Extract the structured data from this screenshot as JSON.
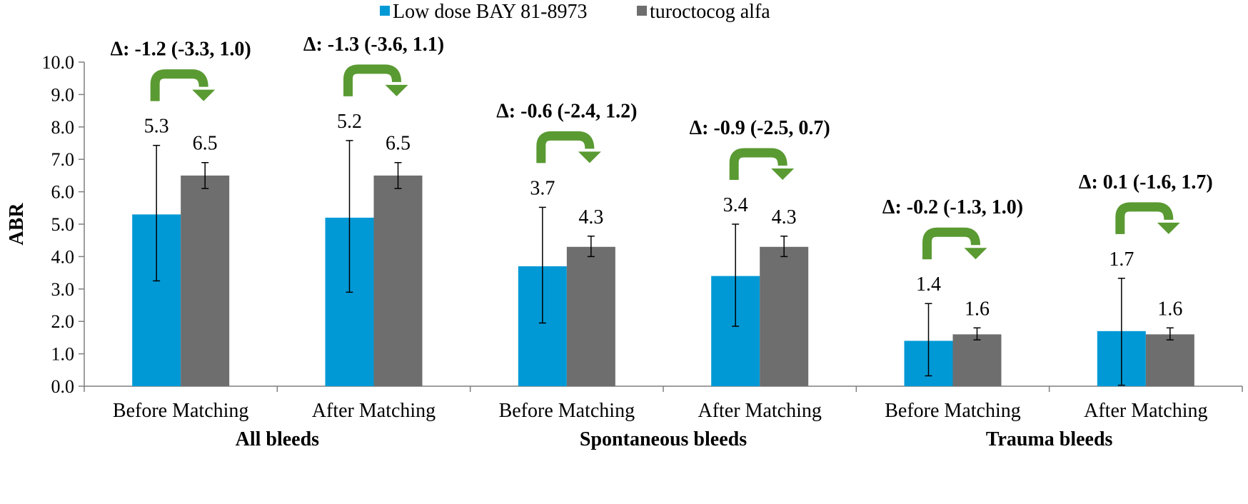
{
  "chart_data": {
    "type": "bar",
    "ylabel": "ABR",
    "ylim": [
      0,
      10
    ],
    "yticks": [
      "0.0",
      "1.0",
      "2.0",
      "3.0",
      "4.0",
      "5.0",
      "6.0",
      "7.0",
      "8.0",
      "9.0",
      "10.0"
    ],
    "categories": [
      "Before Matching",
      "After Matching",
      "Before Matching",
      "After Matching",
      "Before Matching",
      "After Matching"
    ],
    "groups": [
      {
        "label": "All bleeds",
        "categories": [
          0,
          1
        ]
      },
      {
        "label": "Spontaneous bleeds",
        "categories": [
          2,
          3
        ]
      },
      {
        "label": "Trauma bleeds",
        "categories": [
          4,
          5
        ]
      }
    ],
    "legend_position": "top-center",
    "grid": false,
    "series": [
      {
        "name": "Low dose BAY 81-8973",
        "color": "#0099d6",
        "values": [
          5.3,
          5.2,
          3.7,
          3.4,
          1.4,
          1.7
        ],
        "value_labels": [
          "5.3",
          "5.2",
          "3.7",
          "3.4",
          "1.4",
          "1.7"
        ],
        "err_low": [
          3.25,
          2.9,
          1.95,
          1.85,
          0.32,
          0.03
        ],
        "err_high": [
          7.43,
          7.58,
          5.52,
          5.0,
          2.55,
          3.33
        ]
      },
      {
        "name": "turoctocog alfa",
        "color": "#6e6e6e",
        "values": [
          6.5,
          6.5,
          4.3,
          4.3,
          1.6,
          1.6
        ],
        "value_labels": [
          "6.5",
          "6.5",
          "4.3",
          "4.3",
          "1.6",
          "1.6"
        ],
        "err_low": [
          6.1,
          6.1,
          4.0,
          4.0,
          1.43,
          1.43
        ],
        "err_high": [
          6.9,
          6.9,
          4.63,
          4.63,
          1.8,
          1.8
        ]
      }
    ],
    "annotations": [
      "Δ: -1.2 (-3.3, 1.0)",
      "Δ: -1.3 (-3.6, 1.1)",
      "Δ: -0.6 (-2.4, 1.2)",
      "Δ: -0.9 (-2.5, 0.7)",
      "Δ: -0.2 (-1.3, 1.0)",
      "Δ: 0.1 (-1.6, 1.7)"
    ],
    "arrow_color": "#5a9a32"
  }
}
